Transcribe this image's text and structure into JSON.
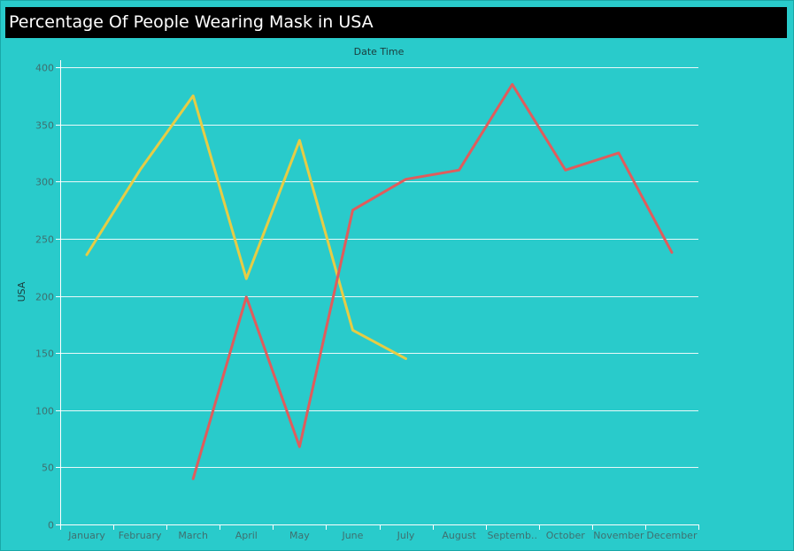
{
  "title": "Percentage Of People Wearing Mask in USA",
  "colors": {
    "background": "#29cbcb",
    "grid": "#ffffff",
    "axis": "#ffffff"
  },
  "chart_data": {
    "type": "line",
    "title": "",
    "xlabel": "Date Time",
    "ylabel": "USA",
    "x_axis_position": "top",
    "grid": true,
    "legend": "none",
    "ylim": [
      0,
      400
    ],
    "yticks": [
      0,
      50,
      100,
      150,
      200,
      250,
      300,
      350,
      400
    ],
    "categories": [
      "January",
      "February",
      "March",
      "April",
      "May",
      "June",
      "July",
      "August",
      "September",
      "October",
      "November",
      "December"
    ],
    "category_labels": [
      "January",
      "February",
      "March",
      "April",
      "May",
      "June",
      "July",
      "August",
      "Septemb..",
      "October",
      "November",
      "December"
    ],
    "series": [
      {
        "color": "#e6cc45",
        "values": [
          236,
          310,
          375,
          215,
          336,
          170,
          145,
          null,
          null,
          null,
          null,
          null
        ]
      },
      {
        "color": "#e05c5c",
        "values": [
          null,
          null,
          40,
          199,
          68,
          275,
          302,
          310,
          385,
          310,
          325,
          238
        ]
      }
    ]
  }
}
